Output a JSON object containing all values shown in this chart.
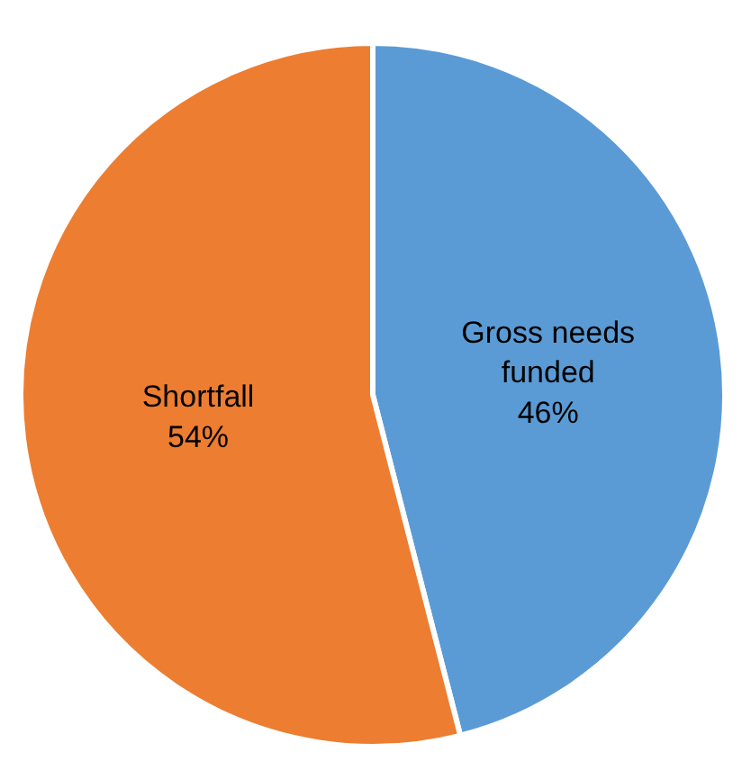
{
  "chart_data": {
    "type": "pie",
    "categories": [
      "Gross needs funded",
      "Shortfall"
    ],
    "values": [
      46,
      54
    ],
    "colors": [
      "#5b9bd5",
      "#ed7d31"
    ],
    "value_labels": [
      "46%",
      "54%"
    ],
    "legend": false
  }
}
